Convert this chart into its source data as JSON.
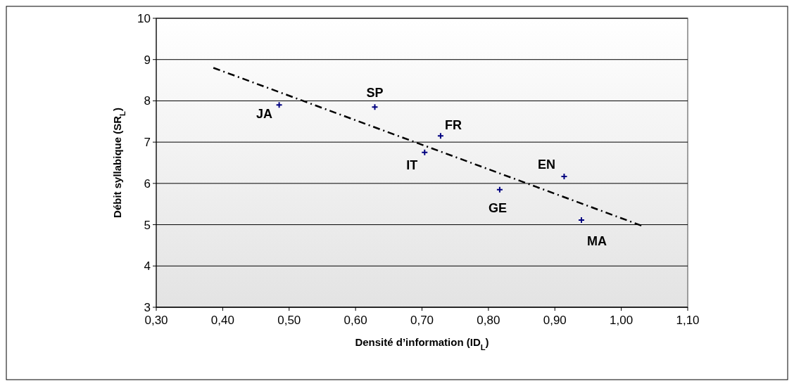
{
  "chart_data": {
    "type": "scatter",
    "xlabel": "Densité d’information (ID$_{L}$)",
    "ylabel": "Débit syllabique (SR$_{L}$)",
    "xlim": [
      0.3,
      1.1
    ],
    "xticks": [
      {
        "value": 0.3,
        "label": "0,30"
      },
      {
        "value": 0.4,
        "label": "0,40"
      },
      {
        "value": 0.5,
        "label": "0,50"
      },
      {
        "value": 0.6,
        "label": "0,60"
      },
      {
        "value": 0.7,
        "label": "0,70"
      },
      {
        "value": 0.8,
        "label": "0,80"
      },
      {
        "value": 0.9,
        "label": "0,90"
      },
      {
        "value": 1.0,
        "label": "1,00"
      },
      {
        "value": 1.1,
        "label": "1,10"
      }
    ],
    "ylim": [
      3,
      10
    ],
    "yticks": [
      3,
      4,
      5,
      6,
      7,
      8,
      9,
      10
    ],
    "grid": "y",
    "marker": "cross",
    "series": [
      {
        "type": "scatter",
        "color": "#000080",
        "x": [
          0.485,
          0.629,
          0.728,
          0.704,
          0.817,
          0.914,
          0.94
        ],
        "values": [
          7.9,
          7.85,
          7.15,
          6.75,
          5.85,
          6.17,
          5.11
        ]
      },
      {
        "type": "line",
        "color": "#000000",
        "line_style": "dashed",
        "marker": "none",
        "x": [
          0.386,
          1.035
        ],
        "values": [
          8.8,
          4.95
        ]
      }
    ],
    "annotations": [
      {
        "text": "JA",
        "x": 0.485,
        "y": 7.9
      },
      {
        "text": "SP",
        "x": 0.629,
        "y": 7.85
      },
      {
        "text": "FR",
        "x": 0.728,
        "y": 7.15
      },
      {
        "text": "IT",
        "x": 0.704,
        "y": 6.75
      },
      {
        "text": "GE",
        "x": 0.817,
        "y": 5.85
      },
      {
        "text": "EN",
        "x": 0.914,
        "y": 6.17
      },
      {
        "text": "MA",
        "x": 0.94,
        "y": 5.11
      }
    ]
  }
}
